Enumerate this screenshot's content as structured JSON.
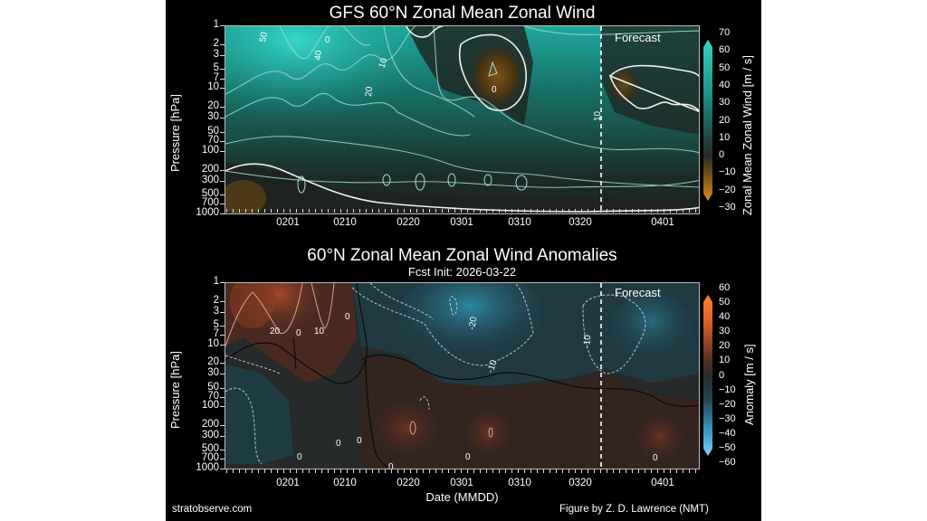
{
  "figure": {
    "credit_left": "stratobserve.com",
    "credit_right": "Figure by Z. D. Lawrence (NMT)",
    "xlabel": "Date (MMDD)"
  },
  "top": {
    "title": "GFS 60°N Zonal Mean Zonal Wind",
    "ylabel": "Pressure [hPa]",
    "forecast_label": "Forecast",
    "colorbar_label": "Zonal Mean Zonal Wind [m / s]",
    "colorbar_ticks": [
      "70",
      "60",
      "50",
      "40",
      "30",
      "20",
      "10",
      "0",
      "−10",
      "−20",
      "−30"
    ],
    "contour_labels": [
      "50",
      "40",
      "10",
      "20",
      "0",
      "10",
      "0"
    ]
  },
  "bottom": {
    "title": "60°N Zonal Mean Zonal Wind Anomalies",
    "subtitle": "Fcst Init: 2026-03-22",
    "ylabel": "Pressure [hPa]",
    "forecast_label": "Forecast",
    "colorbar_label": "Anomaly [m / s]",
    "colorbar_ticks": [
      "60",
      "50",
      "40",
      "30",
      "20",
      "10",
      "0",
      "−10",
      "−20",
      "−30",
      "−40",
      "−50",
      "−60"
    ],
    "contour_labels": [
      "20",
      "10",
      "0",
      "0",
      "-20",
      "-10",
      "-10",
      "0",
      "0",
      "0",
      "0",
      "0",
      "0"
    ]
  },
  "y_ticks": [
    "1",
    "2",
    "3",
    "5",
    "7",
    "10",
    "20",
    "30",
    "50",
    "70",
    "100",
    "200",
    "300",
    "500",
    "700",
    "1000"
  ],
  "x_ticks": [
    "0201",
    "0210",
    "0220",
    "0301",
    "0310",
    "0320",
    "0401"
  ],
  "colors": {
    "wind_high": "#2fd6c6",
    "wind_zero": "#2a2a26",
    "wind_low": "#d98a1e",
    "anom_pos": "#e8622a",
    "anom_zero": "#2a2a2a",
    "anom_neg": "#4fb6e0"
  },
  "chart_data": [
    {
      "type": "heatmap",
      "title": "GFS 60°N Zonal Mean Zonal Wind",
      "xlabel": "",
      "ylabel": "Pressure [hPa]",
      "x_ticks": [
        "0201",
        "0210",
        "0220",
        "0301",
        "0310",
        "0320",
        "0401"
      ],
      "y_ticks": [
        1,
        2,
        3,
        5,
        7,
        10,
        20,
        30,
        50,
        70,
        100,
        200,
        300,
        500,
        700,
        1000
      ],
      "y_scale": "log (inverted)",
      "colorbar": {
        "label": "Zonal Mean Zonal Wind [m / s]",
        "min": -30,
        "max": 70,
        "step": 10
      },
      "contour_levels_labeled": [
        50,
        40,
        20,
        10,
        0
      ],
      "forecast_start": "0322",
      "annotations": [
        "Forecast"
      ],
      "description": "Strong westerlies (50-60 m/s) near 1-10 hPa in late January weakening through February; easterly (negative) pocket near 3-10 hPa around 0301-0307; weak winds (~0-10 m/s) at upper levels in forecast after 0322; weak easterlies near surface in late January."
    },
    {
      "type": "heatmap",
      "title": "60°N Zonal Mean Zonal Wind Anomalies",
      "subtitle": "Fcst Init: 2026-03-22",
      "xlabel": "Date (MMDD)",
      "ylabel": "Pressure [hPa]",
      "x_ticks": [
        "0201",
        "0210",
        "0220",
        "0301",
        "0310",
        "0320",
        "0401"
      ],
      "y_ticks": [
        1,
        2,
        3,
        5,
        7,
        10,
        20,
        30,
        50,
        70,
        100,
        200,
        300,
        500,
        700,
        1000
      ],
      "y_scale": "log (inverted)",
      "colorbar": {
        "label": "Anomaly [m / s]",
        "min": -60,
        "max": 60,
        "step": 10
      },
      "contour_levels_labeled": [
        20,
        10,
        0,
        -10,
        -20
      ],
      "forecast_start": "0322",
      "annotations": [
        "Forecast"
      ],
      "description": "Positive anomalies (+20 m/s) at 1-10 hPa late Jan to early Feb; negative anomalies (-20 to -30 m/s) at 1-10 hPa from mid-Feb through mid-Mar; -10 m/s anomaly persisting in forecast upper levels; weak positive anomalies in troposphere Feb-Mar."
    }
  ]
}
